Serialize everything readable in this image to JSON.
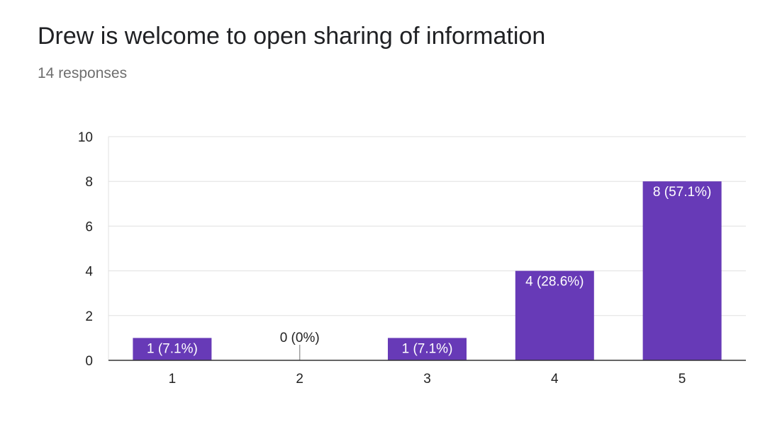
{
  "header": {
    "title": "Drew is welcome to open sharing of information",
    "subtitle": "14 responses"
  },
  "colors": {
    "bar": "#673ab7",
    "grid": "#e0e0e0",
    "axis": "#333333"
  },
  "chart_data": {
    "type": "bar",
    "title": "Drew is welcome to open sharing of information",
    "subtitle": "14 responses",
    "categories": [
      "1",
      "2",
      "3",
      "4",
      "5"
    ],
    "values": [
      1,
      0,
      1,
      4,
      8
    ],
    "data_labels": [
      "1 (7.1%)",
      "0 (0%)",
      "1 (7.1%)",
      "4 (28.6%)",
      "8 (57.1%)"
    ],
    "ylim": [
      0,
      10
    ],
    "yticks": [
      0,
      2,
      4,
      6,
      8,
      10
    ],
    "grid": true,
    "legend": "none"
  }
}
